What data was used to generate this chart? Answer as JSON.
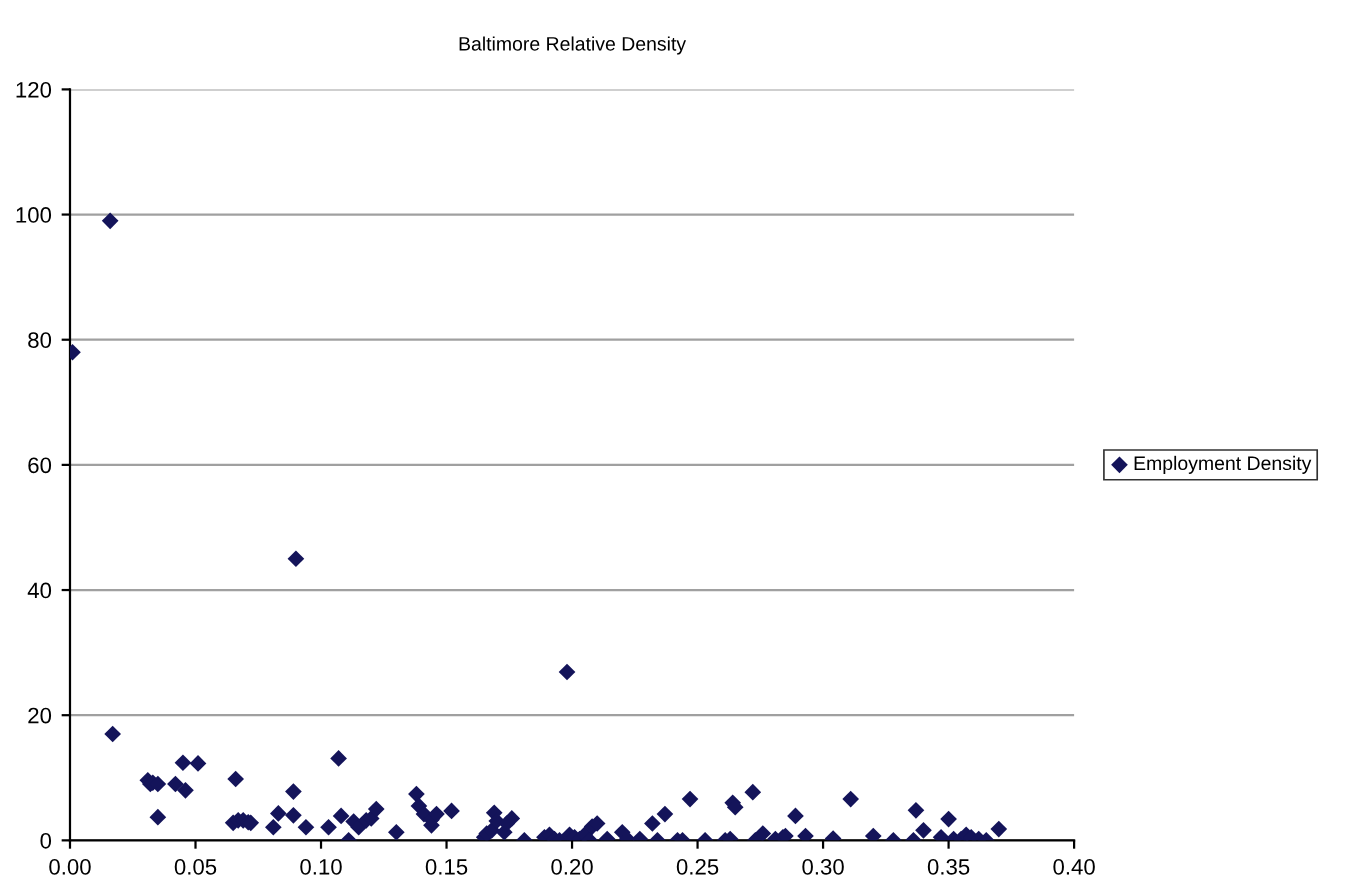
{
  "chart_data": {
    "type": "scatter",
    "title": "Baltimore Relative Density",
    "marker": "diamond",
    "grid": "y",
    "legend": "right",
    "xlim": [
      0,
      0.4
    ],
    "xticks": [
      {
        "value": 0,
        "label": "0.00"
      },
      {
        "value": 0.05,
        "label": "0.05"
      },
      {
        "value": 0.1,
        "label": "0.10"
      },
      {
        "value": 0.15,
        "label": "0.15"
      },
      {
        "value": 0.2,
        "label": "0.20"
      },
      {
        "value": 0.25,
        "label": "0.25"
      },
      {
        "value": 0.3,
        "label": "0.30"
      },
      {
        "value": 0.35,
        "label": "0.35"
      },
      {
        "value": 0.4,
        "label": "0.40"
      }
    ],
    "ylim": [
      0,
      120
    ],
    "yticks": [
      0,
      20,
      40,
      60,
      80,
      100,
      120
    ],
    "series": [
      {
        "name": "Employment Density",
        "color": "#14145a",
        "x": [
          0.001,
          0.016,
          0.017,
          0.031,
          0.032,
          0.033,
          0.035,
          0.035,
          0.042,
          0.046,
          0.045,
          0.051,
          0.066,
          0.065,
          0.067,
          0.069,
          0.071,
          0.072,
          0.081,
          0.083,
          0.089,
          0.089,
          0.09,
          0.094,
          0.103,
          0.107,
          0.108,
          0.111,
          0.113,
          0.115,
          0.118,
          0.12,
          0.122,
          0.13,
          0.138,
          0.139,
          0.141,
          0.144,
          0.144,
          0.146,
          0.152,
          0.165,
          0.166,
          0.168,
          0.169,
          0.17,
          0.173,
          0.174,
          0.176,
          0.181,
          0.189,
          0.191,
          0.193,
          0.195,
          0.198,
          0.199,
          0.201,
          0.203,
          0.205,
          0.207,
          0.208,
          0.21,
          0.214,
          0.22,
          0.222,
          0.227,
          0.232,
          0.234,
          0.237,
          0.242,
          0.244,
          0.247,
          0.253,
          0.261,
          0.263,
          0.264,
          0.265,
          0.272,
          0.273,
          0.276,
          0.281,
          0.284,
          0.285,
          0.289,
          0.293,
          0.304,
          0.311,
          0.32,
          0.328,
          0.336,
          0.337,
          0.34,
          0.347,
          0.35,
          0.352,
          0.355,
          0.357,
          0.359,
          0.362,
          0.365,
          0.37
        ],
        "values": [
          78,
          99,
          17,
          9.6,
          9,
          9.2,
          9,
          3.7,
          9,
          8,
          12.4,
          12.3,
          9.8,
          2.8,
          3.2,
          3.2,
          2.9,
          2.8,
          2.1,
          4.3,
          7.8,
          4,
          45,
          2.1,
          2.1,
          13.1,
          3.9,
          0,
          3,
          2.1,
          3.2,
          3.5,
          5,
          1.3,
          7.4,
          5.5,
          4.2,
          2.4,
          3.3,
          4.2,
          4.7,
          0.5,
          1.1,
          1.6,
          4.4,
          3.1,
          1.3,
          2.7,
          3.5,
          0,
          0.5,
          0.9,
          0.2,
          0,
          26.9,
          0.9,
          0.5,
          0.2,
          0.9,
          0,
          2.2,
          2.7,
          0.2,
          1.3,
          0.2,
          0.2,
          2.7,
          0,
          4.2,
          0,
          0,
          6.6,
          0,
          0,
          0.2,
          6,
          5.3,
          7.7,
          0,
          1.1,
          0.2,
          0.5,
          0.7,
          3.9,
          0.7,
          0.3,
          6.6,
          0.7,
          0,
          0,
          4.8,
          1.6,
          0.5,
          3.4,
          0.2,
          0.2,
          0.9,
          0.5,
          0.2,
          0,
          1.8
        ]
      }
    ]
  }
}
